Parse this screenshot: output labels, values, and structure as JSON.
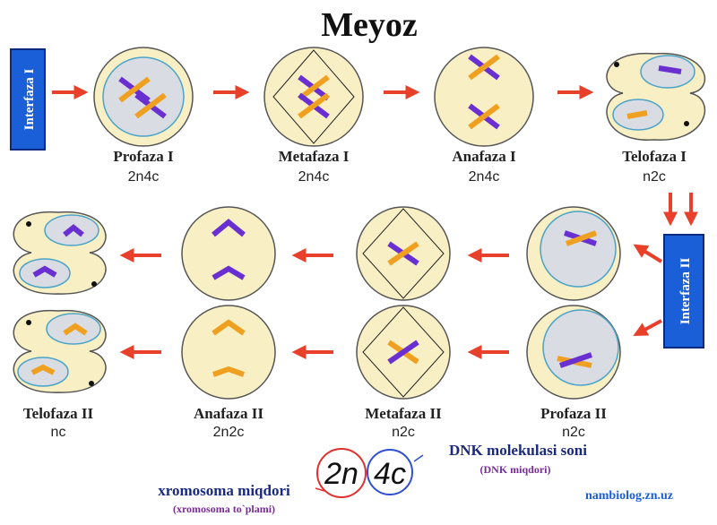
{
  "title": "Meyoz",
  "interphases": [
    "Interfaza I",
    "Interfaza II"
  ],
  "stages": [
    {
      "label": "Profaza I",
      "formula": "2n4c"
    },
    {
      "label": "Metafaza I",
      "formula": "2n4c"
    },
    {
      "label": "Anafaza I",
      "formula": "2n4c"
    },
    {
      "label": "Telofaza I",
      "formula": "n2c"
    },
    {
      "label": "Profaza II",
      "formula": "n2c"
    },
    {
      "label": "Metafaza II",
      "formula": "n2c"
    },
    {
      "label": "Anafaza II",
      "formula": "2n2c"
    },
    {
      "label": "Telofaza II",
      "formula": "nc"
    }
  ],
  "legend": {
    "ploidy": "2n",
    "dna": "4c",
    "ploidy_label": "xromosoma miqdori",
    "ploidy_note": "(xromosoma to`plami)",
    "dna_label": "DNK molekulasi soni",
    "dna_note": "(DNK miqdori)"
  },
  "credit": "nambiolog.zn.uz"
}
